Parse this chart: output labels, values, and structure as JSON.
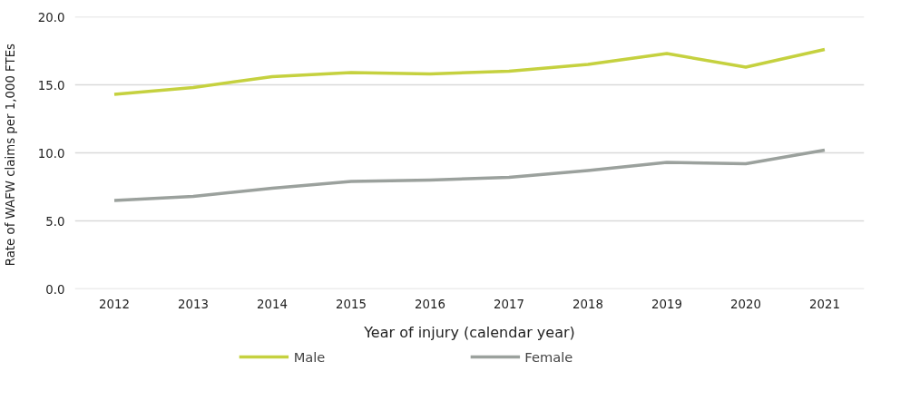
{
  "chart_data": {
    "type": "line",
    "xlabel": "Year of injury (calendar year)",
    "ylabel": "Rate of WAFW claims  per 1,000 FTEs",
    "categories": [
      "2012",
      "2013",
      "2014",
      "2015",
      "2016",
      "2017",
      "2018",
      "2019",
      "2020",
      "2021"
    ],
    "series": [
      {
        "name": "Male",
        "color": "#c5d13f",
        "values": [
          14.3,
          14.8,
          15.6,
          15.9,
          15.8,
          16.0,
          16.5,
          17.3,
          16.3,
          17.6
        ]
      },
      {
        "name": "Female",
        "color": "#9ba19d",
        "values": [
          6.5,
          6.8,
          7.4,
          7.9,
          8.0,
          8.2,
          8.7,
          9.3,
          9.2,
          10.2
        ]
      }
    ],
    "ylim": [
      0,
      20
    ],
    "yticks": [
      {
        "value": 0,
        "label": "0.0"
      },
      {
        "value": 5,
        "label": "5.0"
      },
      {
        "value": 10,
        "label": "10.0"
      },
      {
        "value": 15,
        "label": "15.0"
      },
      {
        "value": 20,
        "label": "20.0"
      }
    ],
    "grid": "y",
    "legend": "bottom",
    "marker": "none",
    "line_style": "solid"
  }
}
